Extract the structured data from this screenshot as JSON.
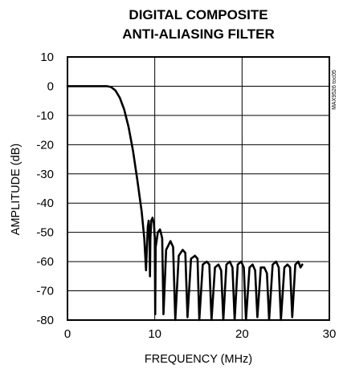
{
  "chart_data": {
    "type": "line",
    "title": [
      "DIGITAL COMPOSITE",
      "ANTI-ALIASING FILTER"
    ],
    "xlabel": "FREQUENCY (MHz)",
    "ylabel": "AMPLITUDE (dB)",
    "xlim": [
      0,
      30
    ],
    "ylim": [
      -80,
      10
    ],
    "xticks": [
      0,
      10,
      20,
      30
    ],
    "yticks": [
      10,
      0,
      -10,
      -20,
      -30,
      -40,
      -50,
      -60,
      -70,
      -80
    ],
    "grid": true,
    "legend": "none",
    "annotation": "MAX9526 toc05",
    "line_color": "#000000",
    "series": [
      {
        "x": [
          0,
          4.5,
          5,
          5.5,
          6,
          6.5,
          7,
          7.5,
          8,
          8.5,
          8.8,
          9.0,
          9.1,
          9.2,
          9.3,
          9.4,
          9.45,
          9.5,
          9.6,
          9.75,
          9.9,
          10.0,
          10.05,
          10.1,
          10.35,
          10.6,
          10.85,
          11.0,
          11.3,
          11.8,
          12.1,
          12.35,
          12.75,
          13.2,
          13.5,
          13.75,
          14.15,
          14.6,
          14.9,
          15.1,
          15.5,
          15.95,
          16.25,
          16.5,
          16.9,
          17.3,
          17.6,
          17.85,
          18.2,
          18.6,
          18.9,
          19.15,
          19.5,
          19.9,
          20.2,
          20.45,
          20.85,
          21.2,
          21.5,
          21.75,
          22.15,
          22.55,
          22.85,
          23.1,
          23.5,
          23.9,
          24.2,
          24.45,
          24.85,
          25.2,
          25.5,
          25.75,
          26.1,
          26.45,
          26.7,
          26.9
        ],
        "y": [
          0,
          0,
          -0.3,
          -1.5,
          -4,
          -8,
          -14,
          -22,
          -32,
          -43,
          -52,
          -63,
          -55,
          -48,
          -46,
          -52,
          -65,
          -52,
          -46,
          -45,
          -47,
          -52,
          -78,
          -55,
          -50,
          -49,
          -52,
          -78,
          -56,
          -53,
          -55,
          -80,
          -58,
          -56,
          -57,
          -79,
          -59,
          -58,
          -59,
          -80,
          -61,
          -60,
          -61,
          -80,
          -62,
          -61,
          -63,
          -80,
          -61,
          -60,
          -62,
          -80,
          -61,
          -60,
          -62,
          -80,
          -62,
          -61,
          -63,
          -79,
          -62,
          -62,
          -64,
          -80,
          -61,
          -60,
          -62,
          -80,
          -62,
          -61,
          -62,
          -79,
          -61,
          -60,
          -62,
          -61
        ]
      }
    ]
  }
}
